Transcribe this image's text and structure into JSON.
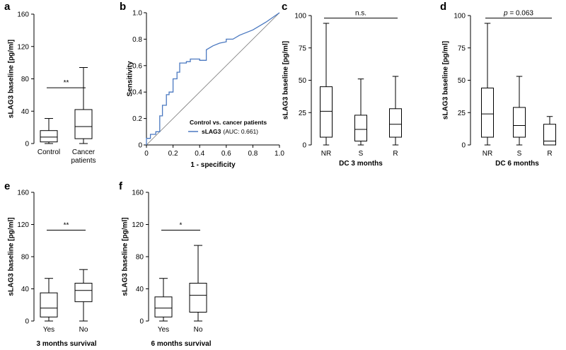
{
  "chart_data": [
    {
      "panel": "a",
      "type": "box",
      "ylabel": "sLAG3 baseline [pg/ml]",
      "xlabel": "",
      "ylim": [
        0,
        160
      ],
      "yticks": [
        0,
        40,
        80,
        120,
        160
      ],
      "categories": [
        "Control",
        "Cancer patients"
      ],
      "category_lines": [
        [
          "Control"
        ],
        [
          "Cancer",
          "patients"
        ]
      ],
      "boxes": [
        {
          "min": 0,
          "q1": 2,
          "median": 8,
          "q3": 16,
          "max": 31
        },
        {
          "min": 0,
          "q1": 6,
          "median": 21,
          "q3": 42,
          "max": 94
        }
      ],
      "significance": [
        {
          "from": 0,
          "to": 1,
          "level": 69,
          "label": "**",
          "italic": false
        }
      ]
    },
    {
      "panel": "b",
      "type": "roc",
      "xlabel": "1 - specificity",
      "ylabel": "Sensitivity",
      "xlim": [
        0,
        1
      ],
      "ylim": [
        0,
        1
      ],
      "ticks": [
        0,
        0.2,
        0.4,
        0.6,
        0.8,
        1
      ],
      "tick_labels": [
        "0",
        "0.2",
        "0.4",
        "0.6",
        "0.8",
        "1.0"
      ],
      "legend_title": "Control vs. cancer patients",
      "series_name": "sLAG3",
      "auc_text": "(AUC: 0.661)",
      "line_color": "#4a78c0",
      "roc_x": [
        0,
        0,
        0.03,
        0.03,
        0.07,
        0.07,
        0.1,
        0.1,
        0.12,
        0.12,
        0.15,
        0.15,
        0.17,
        0.17,
        0.2,
        0.2,
        0.23,
        0.23,
        0.25,
        0.25,
        0.3,
        0.3,
        0.33,
        0.33,
        0.4,
        0.4,
        0.45,
        0.45,
        0.5,
        0.55,
        0.6,
        0.6,
        0.65,
        0.7,
        0.8,
        0.9,
        1
      ],
      "roc_y": [
        0,
        0.05,
        0.05,
        0.08,
        0.08,
        0.1,
        0.1,
        0.22,
        0.22,
        0.3,
        0.3,
        0.38,
        0.38,
        0.4,
        0.4,
        0.5,
        0.5,
        0.55,
        0.55,
        0.62,
        0.62,
        0.63,
        0.63,
        0.65,
        0.65,
        0.64,
        0.64,
        0.72,
        0.75,
        0.77,
        0.78,
        0.8,
        0.8,
        0.83,
        0.87,
        0.93,
        1
      ]
    },
    {
      "panel": "c",
      "type": "box",
      "ylabel": "sLAG3 baseline [pg/ml]",
      "xlabel": "DC 3 months",
      "ylim": [
        0,
        100
      ],
      "yticks": [
        0,
        25,
        50,
        75,
        100
      ],
      "categories": [
        "NR",
        "S",
        "R"
      ],
      "category_lines": [
        [
          "NR"
        ],
        [
          "S"
        ],
        [
          "R"
        ]
      ],
      "boxes": [
        {
          "min": 0,
          "q1": 6,
          "median": 26,
          "q3": 45,
          "max": 94
        },
        {
          "min": 0,
          "q1": 3,
          "median": 12,
          "q3": 23,
          "max": 51
        },
        {
          "min": 0,
          "q1": 6,
          "median": 16,
          "q3": 28,
          "max": 53
        }
      ],
      "significance": [
        {
          "from": 0,
          "to": 2,
          "level": 98,
          "label": "n.s.",
          "italic": false
        }
      ]
    },
    {
      "panel": "d",
      "type": "box",
      "ylabel": "sLAG3 baseline [pg/ml]",
      "xlabel": "DC 6 months",
      "ylim": [
        0,
        100
      ],
      "yticks": [
        0,
        25,
        50,
        75,
        100
      ],
      "categories": [
        "NR",
        "S",
        "R"
      ],
      "category_lines": [
        [
          "NR"
        ],
        [
          "S"
        ],
        [
          "R"
        ]
      ],
      "boxes": [
        {
          "min": 0,
          "q1": 6,
          "median": 24,
          "q3": 44,
          "max": 94
        },
        {
          "min": 0,
          "q1": 6,
          "median": 15,
          "q3": 29,
          "max": 53
        },
        {
          "min": 0,
          "q1": 0,
          "median": 3,
          "q3": 16,
          "max": 22
        }
      ],
      "significance": [
        {
          "from": 0,
          "to": 2,
          "level": 98,
          "label": "p = 0.063",
          "italic": true
        }
      ]
    },
    {
      "panel": "e",
      "type": "box",
      "ylabel": "sLAG3 baseline [pg/ml]",
      "xlabel": "3 months survival",
      "ylim": [
        0,
        160
      ],
      "yticks": [
        0,
        40,
        80,
        120,
        160
      ],
      "categories": [
        "Yes",
        "No"
      ],
      "category_lines": [
        [
          "Yes"
        ],
        [
          "No"
        ]
      ],
      "boxes": [
        {
          "min": 0,
          "q1": 5,
          "median": 16,
          "q3": 35,
          "max": 53
        },
        {
          "min": 0,
          "q1": 24,
          "median": 38,
          "q3": 47,
          "max": 64
        }
      ],
      "significance": [
        {
          "from": 0,
          "to": 1,
          "level": 113,
          "label": "**",
          "italic": false
        }
      ]
    },
    {
      "panel": "f",
      "type": "box",
      "ylabel": "sLAG3 baseline [pg/ml]",
      "xlabel": "6 months survival",
      "ylim": [
        0,
        160
      ],
      "yticks": [
        0,
        40,
        80,
        120,
        160
      ],
      "categories": [
        "Yes",
        "No"
      ],
      "category_lines": [
        [
          "Yes"
        ],
        [
          "No"
        ]
      ],
      "boxes": [
        {
          "min": 0,
          "q1": 5,
          "median": 16,
          "q3": 30,
          "max": 53
        },
        {
          "min": 0,
          "q1": 11,
          "median": 32,
          "q3": 47,
          "max": 94
        }
      ],
      "significance": [
        {
          "from": 0,
          "to": 1,
          "level": 113,
          "label": "*",
          "italic": false
        }
      ]
    }
  ]
}
